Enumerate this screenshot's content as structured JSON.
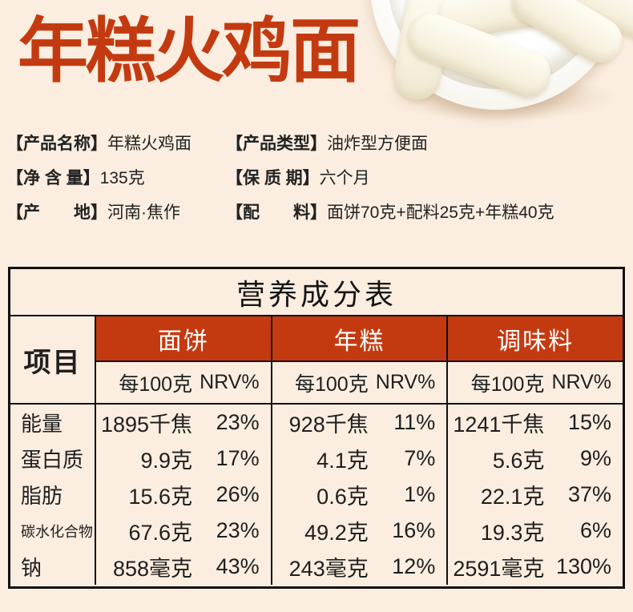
{
  "colors": {
    "background": "#fbeee0",
    "accent_red": "#c43a10",
    "table_border": "#111111",
    "header_text_on_red": "#ffffff",
    "body_text": "#222222"
  },
  "header": {
    "title": "年糕火鸡面"
  },
  "product_info": {
    "rows": [
      {
        "left_label": "【产品名称】",
        "left_value": "年糕火鸡面",
        "right_label": "【产品类型】",
        "right_value": "油炸型方便面"
      },
      {
        "left_label": "【净 含 量】",
        "left_value": "135克",
        "right_label": "【保 质 期】",
        "right_value": "六个月"
      },
      {
        "left_label": "【产　　地】",
        "left_value": "河南·焦作",
        "right_label": "【配　　料】",
        "right_value": "面饼70克+配料25克+年糕40克"
      }
    ]
  },
  "nutrition_table": {
    "title": "营养成分表",
    "item_header": "项目",
    "sub": {
      "per": "每100克",
      "nrv": "NRV%"
    },
    "groups": [
      "面饼",
      "年糕",
      "调味料"
    ],
    "rows": [
      {
        "label": "能量",
        "cells": [
          [
            "1895千焦",
            "23%"
          ],
          [
            "928千焦",
            "11%"
          ],
          [
            "1241千焦",
            "15%"
          ]
        ]
      },
      {
        "label": "蛋白质",
        "cells": [
          [
            "9.9克",
            "17%"
          ],
          [
            "4.1克",
            "7%"
          ],
          [
            "5.6克",
            "9%"
          ]
        ]
      },
      {
        "label": "脂肪",
        "cells": [
          [
            "15.6克",
            "26%"
          ],
          [
            "0.6克",
            "1%"
          ],
          [
            "22.1克",
            "37%"
          ]
        ]
      },
      {
        "label": "碳水化合物",
        "cells": [
          [
            "67.6克",
            "23%"
          ],
          [
            "49.2克",
            "16%"
          ],
          [
            "19.3克",
            "6%"
          ]
        ]
      },
      {
        "label": "钠",
        "cells": [
          [
            "858毫克",
            "43%"
          ],
          [
            "243毫克",
            "12%"
          ],
          [
            "2591毫克",
            "130%"
          ]
        ]
      }
    ]
  }
}
